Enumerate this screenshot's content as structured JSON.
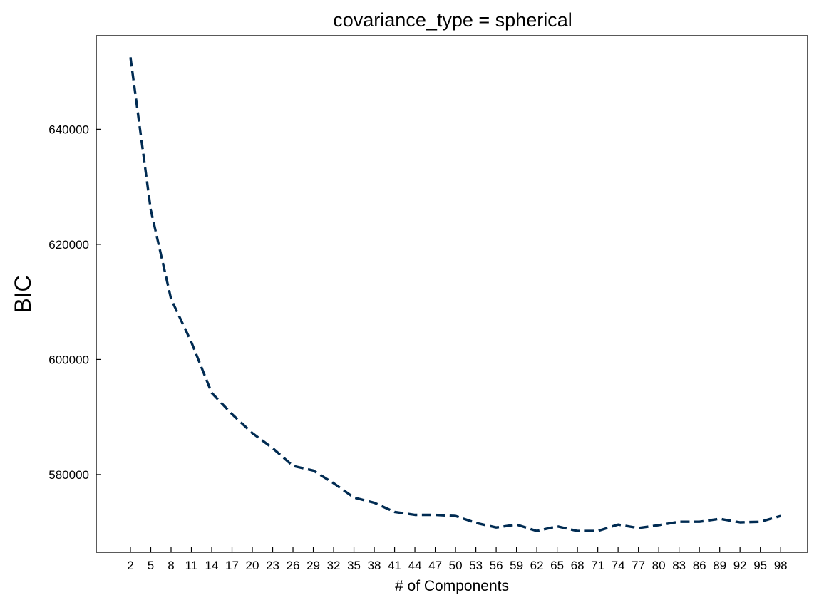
{
  "chart_data": {
    "type": "line",
    "title": "covariance_type = spherical",
    "xlabel": "# of Components",
    "ylabel": "BIC",
    "x": [
      2,
      5,
      8,
      11,
      14,
      17,
      20,
      23,
      26,
      29,
      32,
      35,
      38,
      41,
      44,
      47,
      50,
      53,
      56,
      59,
      62,
      65,
      68,
      71,
      74,
      77,
      80,
      83,
      86,
      89,
      92,
      95,
      98
    ],
    "series": [
      {
        "values": [
          652500,
          626000,
          610500,
          603000,
          594200,
          590500,
          587200,
          584600,
          581500,
          580700,
          578500,
          576000,
          575100,
          573500,
          573000,
          573000,
          572800,
          571600,
          570800,
          571300,
          570200,
          571000,
          570200,
          570200,
          571300,
          570700,
          571200,
          571800,
          571800,
          572300,
          571700,
          571800,
          572800
        ],
        "color": "#002b52"
      }
    ],
    "xticks": [
      2,
      5,
      8,
      11,
      14,
      17,
      20,
      23,
      26,
      29,
      32,
      35,
      38,
      41,
      44,
      47,
      50,
      53,
      56,
      59,
      62,
      65,
      68,
      71,
      74,
      77,
      80,
      83,
      86,
      89,
      92,
      95,
      98
    ],
    "yticks": [
      580000,
      600000,
      620000,
      640000
    ],
    "xlim": [
      -3.05,
      101.98
    ],
    "ylim": [
      566495,
      656266
    ],
    "grid": false,
    "line_style": "dashed"
  }
}
